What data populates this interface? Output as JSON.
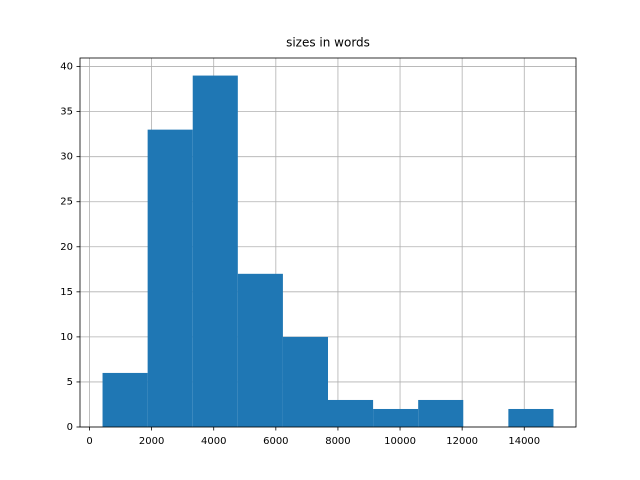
{
  "chart_data": {
    "type": "histogram",
    "title": "sizes in words",
    "bins": [
      420,
      1872,
      3324,
      4776,
      6228,
      7680,
      9132,
      10584,
      12036,
      13488,
      14940
    ],
    "counts": [
      6,
      33,
      39,
      17,
      10,
      3,
      2,
      3,
      0,
      2
    ],
    "color": "#1f77b4",
    "xlim": [
      -306,
      15666
    ],
    "xticks": [
      0,
      2000,
      4000,
      6000,
      8000,
      10000,
      12000,
      14000
    ],
    "ylim": [
      0,
      40.95
    ],
    "yticks": [
      0,
      5,
      10,
      15,
      20,
      25,
      30,
      35,
      40
    ],
    "grid": true
  }
}
